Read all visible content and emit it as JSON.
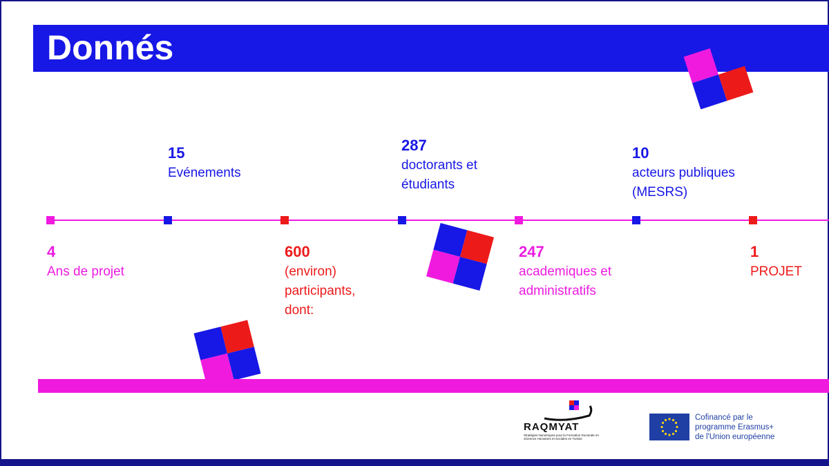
{
  "header": {
    "title": "Donnés"
  },
  "timeline": {
    "top_items": [
      {
        "number": "15",
        "label": "Evénements"
      },
      {
        "number": "287",
        "label": "doctorants et\nétudiants"
      },
      {
        "number": "10",
        "label": "acteurs publiques\n(MESRS)"
      }
    ],
    "bottom_items": [
      {
        "number": "4",
        "label": "Ans de projet"
      },
      {
        "number": "600",
        "label": "(environ)\nparticipants,\ndont:"
      },
      {
        "number": "247",
        "label": "academiques et\nadministratifs"
      },
      {
        "number": "1",
        "label": "PROJET"
      }
    ]
  },
  "colors": {
    "blue": "#1717e6",
    "magenta": "#f01adf",
    "red": "#ed1a1a",
    "navy": "#15148a"
  },
  "footer": {
    "raqmyat": {
      "name": "RAQMYAT",
      "tagline": "Stratégies Numériques pour la Formation Doctorale en Sciences Humaines et Sociales en Tunisie"
    },
    "eu": {
      "text": "Cofinancé par le\nprogramme Erasmus+\nde l'Union européenne"
    }
  }
}
